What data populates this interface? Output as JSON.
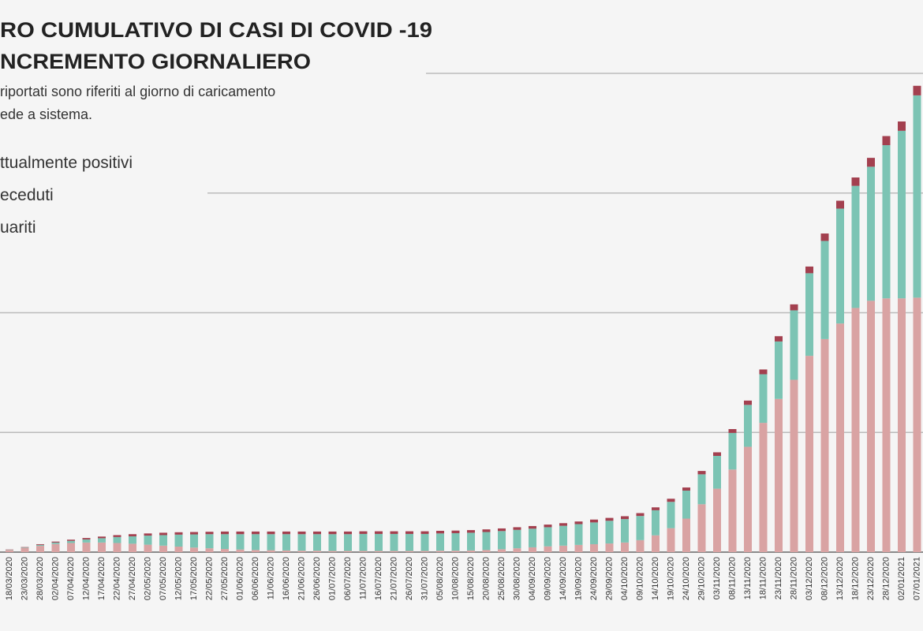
{
  "chart_data": {
    "type": "stacked_bar",
    "title_lines": [
      "RO CUMULATIVO DI CASI DI COVID -19",
      "NCREMENTO GIORNALIERO"
    ],
    "subtitle_lines": [
      "riportati sono riferiti al giorno di caricamento",
      "ede a sistema."
    ],
    "categories": [
      "18/03/2020",
      "23/03/2020",
      "28/03/2020",
      "02/04/2020",
      "07/04/2020",
      "12/04/2020",
      "17/04/2020",
      "22/04/2020",
      "27/04/2020",
      "02/05/2020",
      "07/05/2020",
      "12/05/2020",
      "17/05/2020",
      "22/05/2020",
      "27/05/2020",
      "01/06/2020",
      "06/06/2020",
      "11/06/2020",
      "16/06/2020",
      "21/06/2020",
      "26/06/2020",
      "01/07/2020",
      "06/07/2020",
      "11/07/2020",
      "16/07/2020",
      "21/07/2020",
      "26/07/2020",
      "31/07/2020",
      "05/08/2020",
      "10/08/2020",
      "15/08/2020",
      "20/08/2020",
      "25/08/2020",
      "30/08/2020",
      "04/09/2020",
      "09/09/2020",
      "14/09/2020",
      "19/09/2020",
      "24/09/2020",
      "29/09/2020",
      "04/10/2020",
      "09/10/2020",
      "14/10/2020",
      "19/10/2020",
      "24/10/2020",
      "29/10/2020",
      "03/11/2020",
      "08/11/2020",
      "13/11/2020",
      "18/11/2020",
      "23/11/2020",
      "28/11/2020",
      "03/12/2020",
      "08/12/2020",
      "13/12/2020",
      "18/12/2020",
      "23/12/2020",
      "28/12/2020",
      "02/01/2021",
      "07/01/2021"
    ],
    "series": [
      {
        "name": "ttualmente positivi",
        "color": "#d9a3a3",
        "values": [
          9000,
          17000,
          26000,
          34000,
          38000,
          40000,
          40000,
          38000,
          35000,
          31000,
          27000,
          23000,
          19000,
          16000,
          13000,
          11000,
          9000,
          8000,
          7000,
          6000,
          6000,
          5000,
          5000,
          5000,
          5000,
          5000,
          5000,
          5000,
          6000,
          6000,
          7000,
          9000,
          12000,
          16000,
          20000,
          24000,
          27000,
          30000,
          33000,
          36000,
          40000,
          50000,
          70000,
          100000,
          140000,
          200000,
          265000,
          345000,
          440000,
          540000,
          640000,
          720000,
          820000,
          890000,
          955000,
          1020000,
          1050000,
          1060000,
          1060000,
          1063000
        ]
      },
      {
        "name": "uariti",
        "color": "#7cc4b4",
        "values": [
          1000,
          2000,
          4000,
          6000,
          9000,
          13000,
          18000,
          25000,
          31000,
          38000,
          44000,
          50000,
          55000,
          59000,
          62000,
          64000,
          66000,
          67000,
          68000,
          69000,
          69000,
          70000,
          70000,
          71000,
          71000,
          71000,
          71000,
          71000,
          72000,
          73000,
          74000,
          75000,
          76000,
          77000,
          78000,
          80000,
          83000,
          87000,
          91000,
          95000,
          98000,
          101000,
          105000,
          110000,
          117000,
          125000,
          137000,
          153000,
          175000,
          203000,
          240000,
          290000,
          345000,
          410000,
          480000,
          510000,
          560000,
          640000,
          700000,
          845000
        ]
      },
      {
        "name": "eceduti",
        "color": "#a3404f",
        "values": [
          1000,
          2000,
          3000,
          4000,
          5000,
          6000,
          7000,
          8000,
          9000,
          9000,
          10000,
          10000,
          10000,
          10000,
          11000,
          11000,
          11000,
          11000,
          11000,
          11000,
          11000,
          11000,
          11000,
          11000,
          11000,
          11000,
          11000,
          11000,
          11000,
          11000,
          11000,
          11000,
          11000,
          11000,
          11000,
          11000,
          11000,
          11000,
          12000,
          12000,
          12000,
          12000,
          12000,
          13000,
          13000,
          14000,
          15000,
          16000,
          18000,
          20000,
          22000,
          25000,
          28000,
          31000,
          33000,
          35000,
          37000,
          38000,
          39000,
          40000
        ]
      }
    ],
    "ylim": [
      0,
      2000000
    ],
    "yticks": [
      0,
      500000,
      1000000,
      1500000,
      2000000
    ],
    "grid": true
  }
}
